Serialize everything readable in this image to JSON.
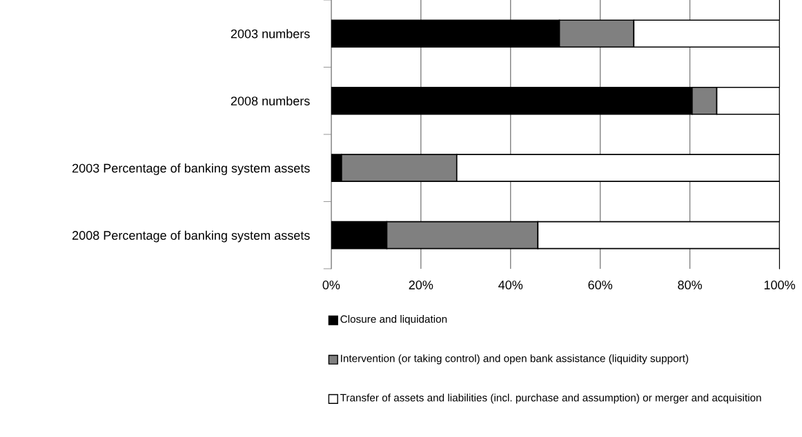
{
  "chart_data": {
    "type": "bar",
    "orientation": "horizontal",
    "stacked": true,
    "categories": [
      "2003 numbers",
      "2008 numbers",
      "2003 Percentage of banking system assets",
      "2008 Percentage of banking system assets"
    ],
    "series": [
      {
        "name": "Closure and liquidation",
        "color": "#000000",
        "values": [
          50.9,
          80.5,
          2.3,
          12.4
        ]
      },
      {
        "name": "Intervention (or taking control) and open bank assistance (liquidity support)",
        "color": "#808080",
        "values": [
          16.6,
          5.5,
          25.7,
          33.7
        ]
      },
      {
        "name": "Transfer of assets and liabilities (incl. purchase and assumption) or merger and acquisition",
        "color": "#ffffff",
        "values": [
          32.5,
          14.0,
          72.0,
          53.9
        ]
      }
    ],
    "xlim": [
      0,
      100
    ],
    "xticks": [
      {
        "value": 0,
        "label": "0%"
      },
      {
        "value": 20,
        "label": "20%"
      },
      {
        "value": 40,
        "label": "40%"
      },
      {
        "value": 60,
        "label": "60%"
      },
      {
        "value": 80,
        "label": "80%"
      },
      {
        "value": 100,
        "label": "100%"
      }
    ],
    "grid": "x",
    "legend": "bottom"
  }
}
